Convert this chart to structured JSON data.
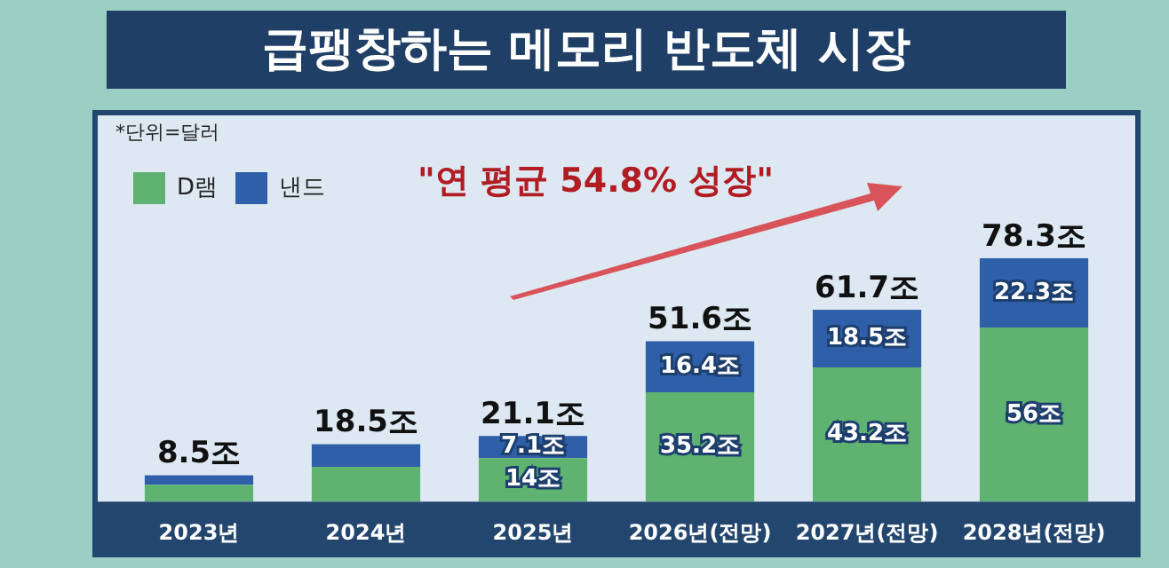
{
  "chart_data": {
    "type": "bar",
    "title": "급팽창하는 메모리 반도체 시장",
    "stacked": true,
    "legend": "top left",
    "grid": false,
    "tick_labels": "x",
    "categories": [
      "2023년",
      "2024년",
      "2025년",
      "2026년(전망)",
      "2027년(전망)",
      "2028년(전망)"
    ],
    "series": [
      {
        "name": "D램",
        "color": "#5fb26f",
        "values": [
          5.4,
          11.2,
          14,
          35.2,
          43.2,
          56
        ],
        "value_labels": [
          null,
          null,
          "14조",
          "35.2조",
          "43.2조",
          "56조"
        ]
      },
      {
        "name": "낸드",
        "color": "#2f5fa8",
        "values": [
          3.1,
          7.3,
          7.1,
          16.4,
          18.5,
          22.3
        ],
        "value_labels": [
          null,
          null,
          "7.1조",
          "16.4조",
          "18.5조",
          "22.3조"
        ]
      }
    ],
    "totals": [
      "8.5조",
      "18.5조",
      "21.1조",
      "51.6조",
      "61.7조",
      "78.3조"
    ],
    "annotations": [
      "*단위=달러",
      "\"연 평균 54.8% 성장\""
    ]
  }
}
